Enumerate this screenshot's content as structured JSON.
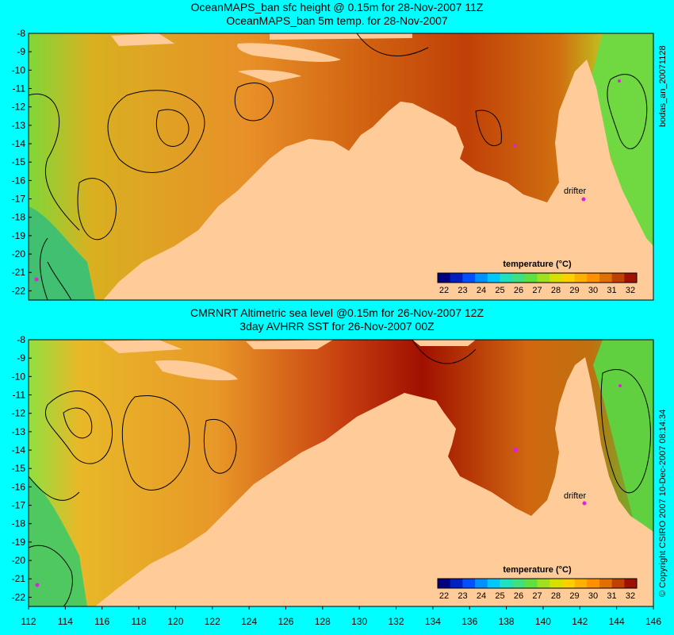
{
  "panels": [
    {
      "title_line1": "OceanMAPS_ban sfc height @ 0.15m for 28-Nov-2007 11Z",
      "title_line2": "OceanMAPS_ban 5m temp. for 28-Nov-2007",
      "side_label": "bodas_an_20071128",
      "drifter_label": "drifter",
      "colorbar_title": "temperature (°C)"
    },
    {
      "title_line1": "CMRNRT Altimetric sea level  @0.15m  for 26-Nov-2007 12Z",
      "title_line2": "3day AVHRR SST for 26-Nov-2007 00Z",
      "side_label": "© Copyright CSIRO 2007   10-Dec-2007 08:14:34",
      "drifter_label": "drifter",
      "colorbar_title": "temperature (°C)"
    }
  ],
  "lat_ticks": [
    "-8",
    "-9",
    "-10",
    "-11",
    "-12",
    "-13",
    "-14",
    "-15",
    "-16",
    "-17",
    "-18",
    "-19",
    "-20",
    "-21",
    "-22"
  ],
  "lon_ticks": [
    "112",
    "114",
    "116",
    "118",
    "120",
    "122",
    "124",
    "126",
    "128",
    "130",
    "132",
    "134",
    "136",
    "138",
    "140",
    "142",
    "144",
    "146"
  ],
  "colorbar_ticks": [
    "22",
    "23",
    "24",
    "25",
    "26",
    "27",
    "28",
    "29",
    "30",
    "31",
    "32"
  ],
  "colorbar_colors": [
    "#000080",
    "#0020c0",
    "#0050ff",
    "#0090ff",
    "#00c8ff",
    "#20e0c0",
    "#40e080",
    "#60e040",
    "#a0e020",
    "#d8e000",
    "#ffd000",
    "#ffb000",
    "#ff9000",
    "#e07000",
    "#c04000",
    "#a01000"
  ],
  "colors": {
    "background": "#00ffff",
    "land": "#ffcc99",
    "sea_warm": "#e07a10",
    "sea_hot": "#b02000",
    "sea_mid": "#e8a020",
    "sea_cool": "#90e040",
    "sea_cold": "#30c080",
    "drifter": "#e020e0"
  }
}
